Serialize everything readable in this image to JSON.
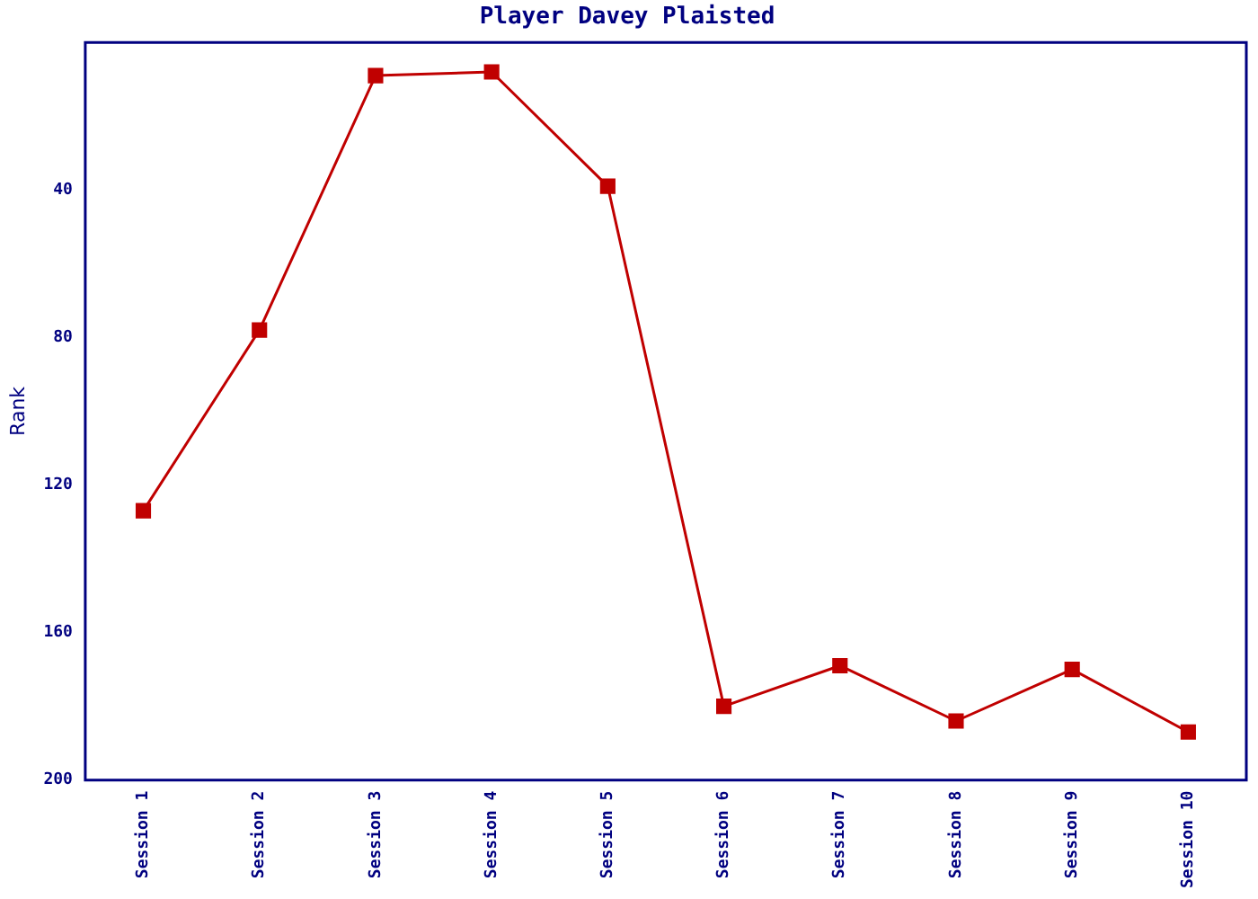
{
  "chart_data": {
    "type": "line",
    "title": "Player Davey Plaisted",
    "ylabel": "Rank",
    "categories": [
      "Session 1",
      "Session 2",
      "Session 3",
      "Session 4",
      "Session 5",
      "Session 6",
      "Session 7",
      "Session 8",
      "Session 9",
      "Session 10"
    ],
    "series": [
      {
        "color": "#c00000",
        "values": [
          127,
          78,
          9,
          8,
          39,
          180,
          169,
          184,
          170,
          187
        ]
      }
    ],
    "ylim": [
      200,
      0
    ],
    "yticks": [
      40,
      80,
      120,
      160,
      200
    ],
    "grid": false,
    "legend": false,
    "marker": "square",
    "line_style": "solid"
  }
}
